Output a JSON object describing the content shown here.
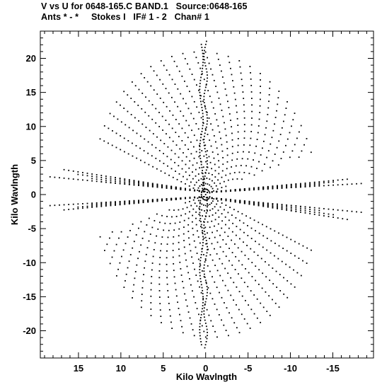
{
  "title_line1": "V vs U for 0648-165.C BAND.1   Source:0648-165",
  "title_line2": "Ants * - *     Stokes I   IF# 1 - 2   Chan# 1",
  "chart_data": {
    "type": "scatter",
    "title": "V vs U for 0648-165.C BAND.1   Source:0648-165",
    "subtitle": "Ants * - *     Stokes I   IF# 1 - 2   Chan# 1",
    "xlabel": "Kilo Wavlngth",
    "ylabel": "Kilo Wavlngth",
    "xlim": [
      19.5,
      -19.8
    ],
    "ylim": [
      -24,
      24
    ],
    "x_ticks": [
      15,
      10,
      5,
      0,
      -5,
      -10,
      -15
    ],
    "y_ticks": [
      20,
      15,
      10,
      5,
      0,
      -5,
      -10,
      -15,
      -20
    ],
    "grid": false,
    "marker_color": "#000000",
    "description_of_data": "uv-coverage tracks: elliptical arcs symmetric about the origin, with a central vertical column of points near u=0",
    "series": [
      {
        "name": "",
        "kind": "arc-family",
        "track_count": 26
      }
    ]
  }
}
